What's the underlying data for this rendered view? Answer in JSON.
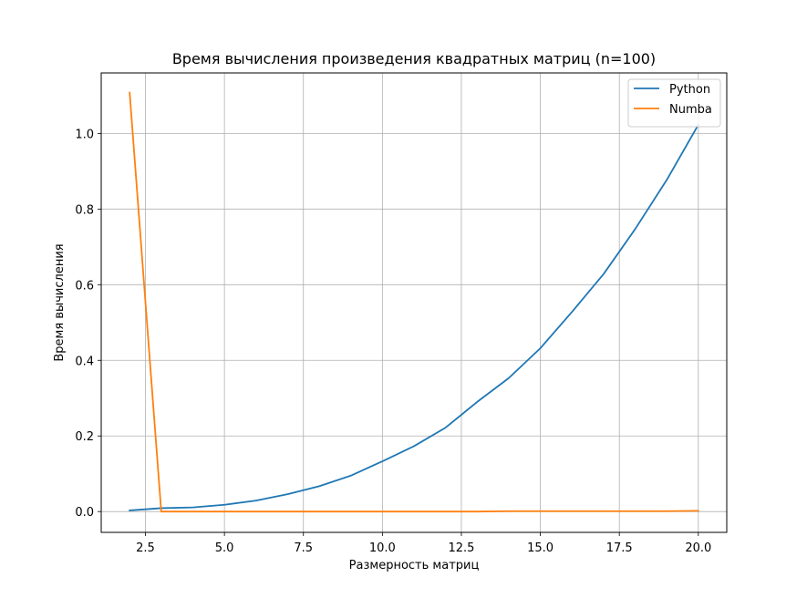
{
  "chart_data": {
    "type": "line",
    "title": "Время вычисления произведения квадратных матриц (n=100)",
    "xlabel": "Размерность матриц",
    "ylabel": "Время вычисления",
    "xlim": [
      1.1,
      20.9
    ],
    "ylim": [
      -0.055,
      1.16
    ],
    "xticks": [
      2.5,
      5.0,
      7.5,
      10.0,
      12.5,
      15.0,
      17.5,
      20.0
    ],
    "xtick_labels": [
      "2.5",
      "5.0",
      "7.5",
      "10.0",
      "12.5",
      "15.0",
      "17.5",
      "20.0"
    ],
    "yticks": [
      0.0,
      0.2,
      0.4,
      0.6,
      0.8,
      1.0
    ],
    "ytick_labels": [
      "0.0",
      "0.2",
      "0.4",
      "0.6",
      "0.8",
      "1.0"
    ],
    "grid": true,
    "legend_position": "top-right",
    "x": [
      2,
      3,
      4,
      5,
      6,
      7,
      8,
      9,
      10,
      11,
      12,
      13,
      14,
      15,
      16,
      17,
      18,
      19,
      20
    ],
    "series": [
      {
        "name": "Python",
        "color": "#1f77b4",
        "values": [
          0.003,
          0.009,
          0.011,
          0.018,
          0.029,
          0.046,
          0.067,
          0.095,
          0.133,
          0.173,
          0.222,
          0.29,
          0.353,
          0.432,
          0.528,
          0.628,
          0.747,
          0.877,
          1.023
        ]
      },
      {
        "name": "Numba",
        "color": "#ff7f0e",
        "values": [
          1.108,
          0.0,
          0.0,
          0.0,
          0.0,
          0.0,
          0.0,
          0.0,
          0.0,
          0.0,
          0.0,
          0.0,
          0.001,
          0.001,
          0.001,
          0.001,
          0.001,
          0.001,
          0.002
        ]
      }
    ]
  }
}
